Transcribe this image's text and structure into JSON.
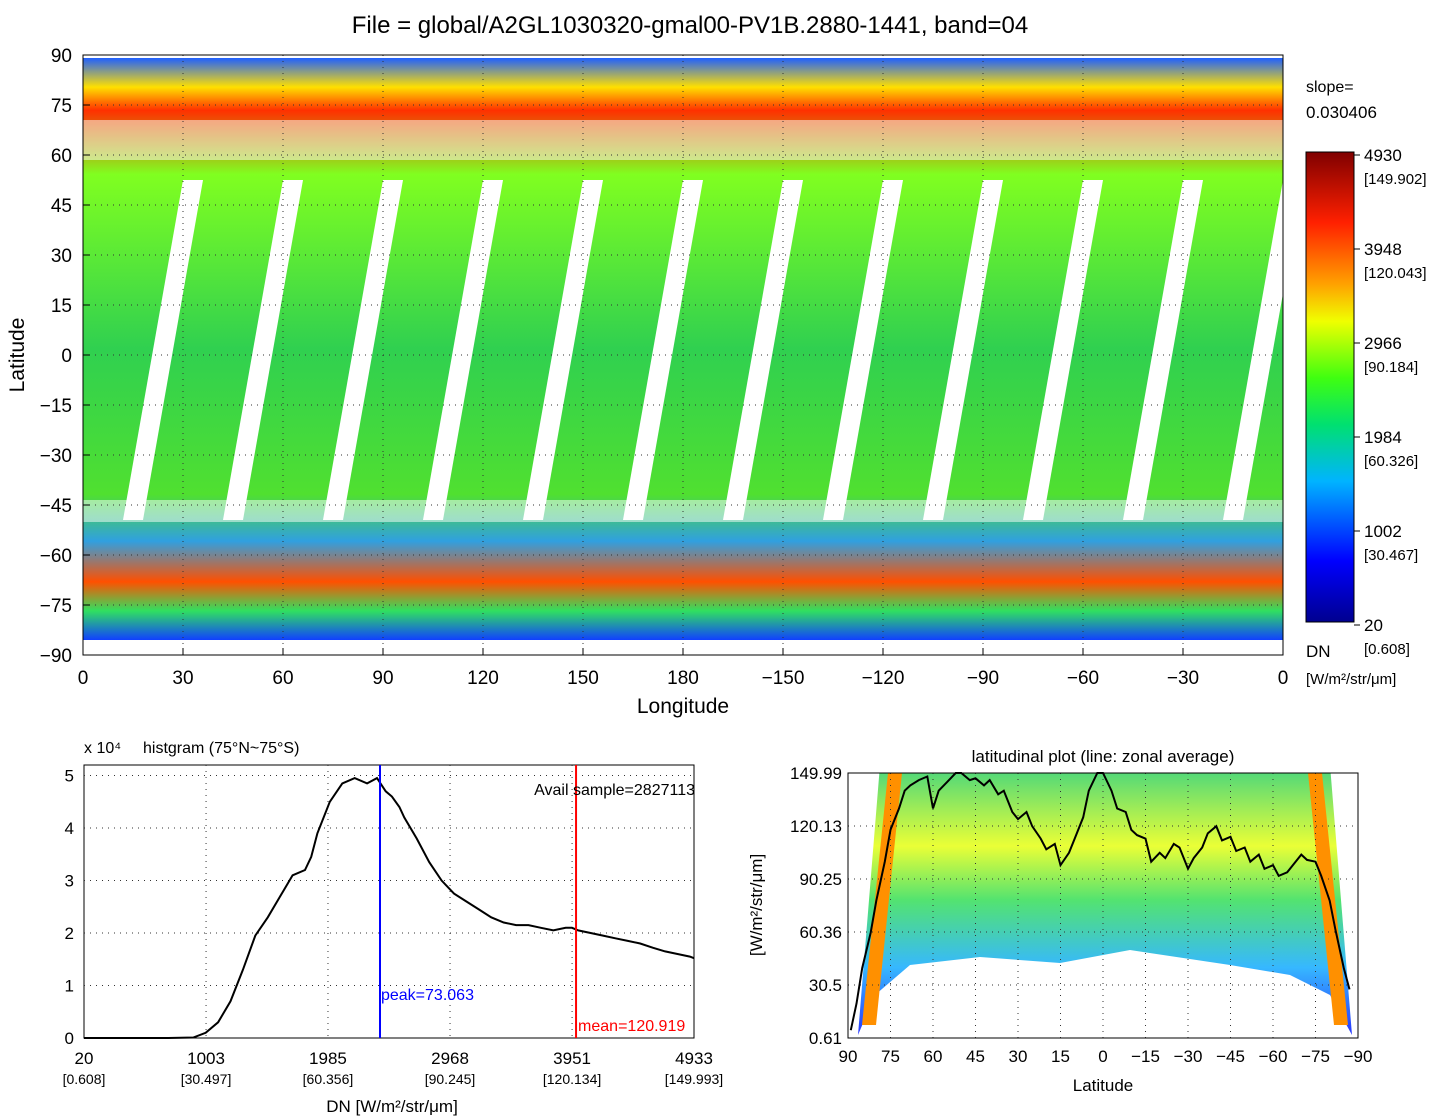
{
  "title": "File = global/A2GL1030320-gmal00-PV1B.2880-1441, band=04",
  "map": {
    "xlabel": "Longitude",
    "ylabel": "Latitude",
    "x_ticks": [
      "0",
      "30",
      "60",
      "90",
      "120",
      "150",
      "180",
      "−150",
      "−120",
      "−90",
      "−60",
      "−30",
      "0"
    ],
    "y_ticks": [
      "90",
      "75",
      "60",
      "45",
      "30",
      "15",
      "0",
      "−15",
      "−30",
      "−45",
      "−60",
      "−75",
      "−90"
    ],
    "slope_label": "slope=",
    "slope_value": "0.030406",
    "colorbar": {
      "ticks": [
        {
          "dn": "4930",
          "rad": "[149.902]"
        },
        {
          "dn": "3948",
          "rad": "[120.043]"
        },
        {
          "dn": "2966",
          "rad": "[90.184]"
        },
        {
          "dn": "1984",
          "rad": "[60.326]"
        },
        {
          "dn": "1002",
          "rad": "[30.467]"
        },
        {
          "dn": "20",
          "rad": "[0.608]"
        }
      ],
      "unit_dn": "DN",
      "unit_rad": "[W/m²/str/μm]"
    }
  },
  "chart_data": [
    {
      "type": "heatmap",
      "title": "File = global/A2GL1030320-gmal00-PV1B.2880-1441, band=04",
      "xlabel": "Longitude",
      "ylabel": "Latitude",
      "xlim": [
        0,
        360
      ],
      "ylim": [
        -90,
        90
      ],
      "color_range_dn": [
        20,
        4930
      ],
      "color_range_radiance": [
        0.608,
        149.902
      ]
    },
    {
      "type": "line",
      "title_prefix": "x 10⁴",
      "title": "histgram (75°N~75°S)",
      "xlabel": "DN [W/m²/str/μm]",
      "x_tick_values": [
        20,
        1003,
        1985,
        2968,
        3951,
        4933
      ],
      "x_tick_labels": [
        "20",
        "1003",
        "1985",
        "2968",
        "3951",
        "4933"
      ],
      "x_tick_sublabels": [
        "[0.608]",
        "[30.497]",
        "[60.356]",
        "[90.245]",
        "[120.134]",
        "[149.993]"
      ],
      "y_ticks": [
        "0",
        "1",
        "2",
        "3",
        "4",
        "5"
      ],
      "xlim": [
        20,
        4933
      ],
      "ylim": [
        0,
        5.2
      ],
      "x": [
        20,
        700,
        900,
        1000,
        1100,
        1200,
        1300,
        1400,
        1500,
        1600,
        1700,
        1800,
        1850,
        1900,
        2000,
        2100,
        2200,
        2300,
        2380,
        2450,
        2500,
        2560,
        2600,
        2700,
        2800,
        2900,
        3000,
        3100,
        3200,
        3300,
        3400,
        3500,
        3600,
        3700,
        3800,
        3900,
        3950,
        4000,
        4100,
        4200,
        4300,
        4400,
        4500,
        4600,
        4700,
        4800,
        4900,
        4933
      ],
      "y": [
        0,
        0,
        0.01,
        0.1,
        0.3,
        0.7,
        1.3,
        1.95,
        2.3,
        2.7,
        3.1,
        3.2,
        3.45,
        3.9,
        4.5,
        4.85,
        4.95,
        4.85,
        4.95,
        4.7,
        4.6,
        4.4,
        4.2,
        3.8,
        3.35,
        3.0,
        2.75,
        2.6,
        2.45,
        2.3,
        2.2,
        2.15,
        2.15,
        2.1,
        2.05,
        2.1,
        2.1,
        2.05,
        2.0,
        1.95,
        1.9,
        1.85,
        1.8,
        1.72,
        1.65,
        1.6,
        1.55,
        1.52
      ],
      "peak": {
        "x": 2404,
        "label": "peak=73.063",
        "color": "#0000ff"
      },
      "mean": {
        "x": 3983,
        "label": "mean=120.919",
        "color": "#ff0000"
      },
      "annotation": "Avail sample=2827113"
    },
    {
      "type": "line",
      "title": "latitudinal plot (line: zonal average)",
      "xlabel": "Latitude",
      "ylabel": "[W/m²/str/μm]",
      "x_tick_labels": [
        "90",
        "75",
        "60",
        "45",
        "30",
        "15",
        "0",
        "−15",
        "−30",
        "−45",
        "−60",
        "−75",
        "−90"
      ],
      "y_tick_labels": [
        "0.61",
        "30.5",
        "60.36",
        "90.25",
        "120.13",
        "149.99"
      ],
      "xlim": [
        90,
        -90
      ],
      "ylim": [
        0.61,
        149.99
      ],
      "x": [
        89,
        87,
        85,
        82,
        80,
        77,
        75,
        72,
        70,
        68,
        65,
        62,
        60,
        58,
        55,
        52,
        50,
        47,
        45,
        42,
        40,
        37,
        35,
        32,
        30,
        27,
        25,
        22,
        20,
        17,
        15,
        12,
        10,
        7,
        5,
        2,
        0,
        -3,
        -5,
        -8,
        -10,
        -12,
        -15,
        -17,
        -20,
        -22,
        -25,
        -27,
        -30,
        -32,
        -35,
        -37,
        -40,
        -42,
        -45,
        -47,
        -50,
        -52,
        -55,
        -57,
        -60,
        -62,
        -65,
        -67,
        -70,
        -72,
        -75,
        -77,
        -80,
        -82,
        -85,
        -87
      ],
      "y": [
        5,
        20,
        40,
        60,
        78,
        100,
        118,
        130,
        140,
        143,
        146,
        148,
        130,
        140,
        145,
        150,
        150,
        146,
        147,
        143,
        146,
        138,
        140,
        128,
        124,
        128,
        120,
        113,
        107,
        110,
        98,
        105,
        113,
        125,
        140,
        150,
        150,
        140,
        130,
        128,
        118,
        115,
        113,
        100,
        105,
        102,
        110,
        108,
        96,
        102,
        108,
        116,
        120,
        112,
        114,
        106,
        108,
        100,
        104,
        96,
        98,
        92,
        94,
        98,
        104,
        101,
        100,
        92,
        78,
        62,
        40,
        28
      ]
    }
  ]
}
